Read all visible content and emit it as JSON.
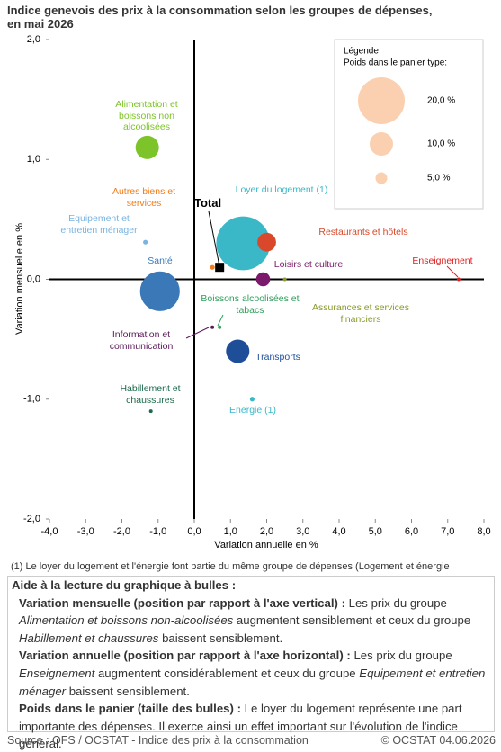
{
  "chart_data": {
    "type": "bubble",
    "title": "Indice genevois des prix à la consommation selon les groupes de dépenses, en mai 2026",
    "x_label": "Variation annuelle en %",
    "y_label": "Variation mensuelle en %",
    "xlim": [
      -4,
      8
    ],
    "ylim": [
      -2,
      2
    ],
    "xticks": [
      {
        "value": -4,
        "label": "-4,0"
      },
      {
        "value": -3,
        "label": "-3,0"
      },
      {
        "value": -2,
        "label": "-2,0"
      },
      {
        "value": -1,
        "label": "-1,0"
      },
      {
        "value": 0,
        "label": "0,0"
      },
      {
        "value": 1,
        "label": "1,0"
      },
      {
        "value": 2,
        "label": "2,0"
      },
      {
        "value": 3,
        "label": "3,0"
      },
      {
        "value": 4,
        "label": "4,0"
      },
      {
        "value": 5,
        "label": "5,0"
      },
      {
        "value": 6,
        "label": "6,0"
      },
      {
        "value": 7,
        "label": "7,0"
      },
      {
        "value": 8,
        "label": "8,0"
      }
    ],
    "yticks": [
      {
        "value": 2,
        "label": "2,0"
      },
      {
        "value": 1,
        "label": "1,0"
      },
      {
        "value": 0,
        "label": "0,0"
      },
      {
        "value": -1,
        "label": "-1,0"
      },
      {
        "value": -2,
        "label": "-2,0"
      }
    ],
    "legend": {
      "title": "Légende",
      "subtitle": "Poids dans le panier type:",
      "sizes": [
        {
          "value": 20,
          "label": "20,0 %"
        },
        {
          "value": 10,
          "label": "10,0 %"
        },
        {
          "value": 5,
          "label": "5,0 %"
        }
      ],
      "color": "#fbd0b0"
    },
    "series": [
      {
        "name": "Alimentation et boissons non alcoolisées",
        "color": "#7dc42a",
        "x": [
          -1.3
        ],
        "values": [
          1.1
        ],
        "sizes": [
          10
        ]
      },
      {
        "name": "Autres biens et services",
        "color": "#f07c1a",
        "x": [
          0.5
        ],
        "values": [
          0.1
        ],
        "sizes": [
          2
        ]
      },
      {
        "name": "Equipement et entretien ménager",
        "color": "#7ab4e0",
        "x": [
          -1.35
        ],
        "values": [
          0.31
        ],
        "sizes": [
          2
        ]
      },
      {
        "name": "Total",
        "color": "#000000",
        "x": [
          0.7
        ],
        "values": [
          0.1
        ],
        "marker": "square"
      },
      {
        "name": "Loyer du logement (1)",
        "color": "#3bb8c8",
        "x": [
          1.35
        ],
        "values": [
          0.3
        ],
        "sizes": [
          23
        ]
      },
      {
        "name": "Restaurants et hôtels",
        "color": "#d9482b",
        "x": [
          2.0
        ],
        "values": [
          0.31
        ],
        "sizes": [
          8
        ]
      },
      {
        "name": "Santé",
        "color": "#3a78b8",
        "x": [
          -0.95
        ],
        "values": [
          -0.1
        ],
        "sizes": [
          17
        ]
      },
      {
        "name": "Loisirs et culture",
        "color": "#7b1a6b",
        "x": [
          1.9
        ],
        "values": [
          0.0
        ],
        "sizes": [
          6
        ]
      },
      {
        "name": "Enseignement",
        "color": "#e02020",
        "x": [
          7.3
        ],
        "values": [
          0.0
        ],
        "sizes": [
          0.5
        ]
      },
      {
        "name": "Assurances et services financiers",
        "color": "#8a9a2b",
        "x": [
          2.5
        ],
        "values": [
          0.0
        ],
        "sizes": [
          0.5
        ]
      },
      {
        "name": "Boissons alcoolisées et tabacs",
        "color": "#2e9e5a",
        "x": [
          0.7
        ],
        "values": [
          -0.4
        ],
        "sizes": [
          1
        ]
      },
      {
        "name": "Information et communication",
        "color": "#5a1a5a",
        "x": [
          0.5
        ],
        "values": [
          -0.4
        ],
        "sizes": [
          1.5
        ]
      },
      {
        "name": "Transports",
        "color": "#1f4e99",
        "x": [
          1.2
        ],
        "values": [
          -0.6
        ],
        "sizes": [
          10
        ]
      },
      {
        "name": "Habillement et chaussures",
        "color": "#1a6b4a",
        "x": [
          -1.2
        ],
        "values": [
          -1.1
        ],
        "sizes": [
          1
        ]
      },
      {
        "name": "Energie (1)",
        "color": "#3bb8c8",
        "x": [
          1.6
        ],
        "values": [
          -1.0
        ],
        "sizes": [
          2
        ]
      }
    ]
  },
  "footnote": "(1) Le loyer du logement et l'énergie font partie du même groupe de dépenses (Logement et énergie",
  "guide": {
    "title": "Aide à la lecture du graphique à bulles :",
    "paragraphs": [
      [
        {
          "text": "Variation mensuelle (position par rapport à l'axe vertical) : ",
          "style": "bold"
        },
        {
          "text": " Les prix du groupe "
        },
        {
          "text": "Alimentation et boissons non-alcoolisées",
          "style": "italic"
        },
        {
          "text": " augmentent sensiblement et ceux du groupe "
        },
        {
          "text": "Habillement et chaussures",
          "style": "italic"
        },
        {
          "text": " baissent sensiblement."
        }
      ],
      [
        {
          "text": "Variation annuelle (position par rapport à l'axe horizontal) : ",
          "style": "bold"
        },
        {
          "text": " Les prix du groupe "
        },
        {
          "text": "Enseignement",
          "style": "italic"
        },
        {
          "text": " augmentent considérablement et ceux du groupe "
        },
        {
          "text": "Equipement et entretien ménager",
          "style": "italic"
        },
        {
          "text": " baissent sensiblement."
        }
      ],
      [
        {
          "text": "Poids dans le panier (taille des bulles) : ",
          "style": "bold"
        },
        {
          "text": "Le loyer du logement représente une part importante des dépenses. Il exerce ainsi un effet important sur l'évolution de l'indice général."
        }
      ]
    ]
  },
  "source": "Source : OFS / OCSTAT - Indice des prix à la consommation",
  "copyright": "© OCSTAT 04.06.2026"
}
